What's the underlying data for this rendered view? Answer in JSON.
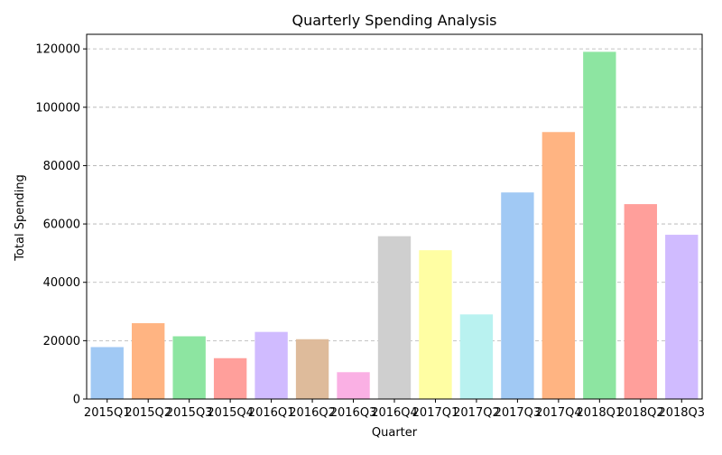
{
  "chart_data": {
    "type": "bar",
    "title": "Quarterly Spending Analysis",
    "xlabel": "Quarter",
    "ylabel": "Total Spending",
    "categories": [
      "2015Q1",
      "2015Q2",
      "2015Q3",
      "2015Q4",
      "2016Q1",
      "2016Q2",
      "2016Q3",
      "2016Q4",
      "2017Q1",
      "2017Q2",
      "2017Q3",
      "2017Q4",
      "2018Q1",
      "2018Q2",
      "2018Q3"
    ],
    "values": [
      17800,
      26000,
      21500,
      14000,
      23000,
      20500,
      9200,
      55800,
      51000,
      29000,
      70800,
      91500,
      119000,
      66800,
      56300
    ],
    "colors": [
      "#a1c9f4",
      "#ffb482",
      "#8de5a1",
      "#ff9f9b",
      "#d0bbff",
      "#debb9b",
      "#fab0e4",
      "#cfcfcf",
      "#fffea3",
      "#b9f2f0",
      "#a1c9f4",
      "#ffb482",
      "#8de5a1",
      "#ff9f9b",
      "#d0bbff"
    ],
    "ylim": [
      0,
      125000
    ],
    "yticks": [
      0,
      20000,
      40000,
      60000,
      80000,
      100000,
      120000
    ],
    "grid": "y-dashed",
    "legend": "none"
  }
}
